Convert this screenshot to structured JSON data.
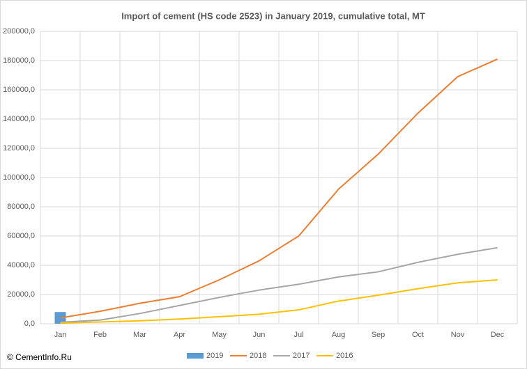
{
  "chart_data": {
    "type": "line",
    "title": "Import of cement (HS code 2523) in January 2019, cumulative total, MT",
    "source": "© CementInfo.Ru",
    "categories": [
      "Jan",
      "Feb",
      "Mar",
      "Apr",
      "May",
      "Jun",
      "Jul",
      "Aug",
      "Sep",
      "Oct",
      "Nov",
      "Dec"
    ],
    "series": [
      {
        "name": "2019",
        "type": "bar",
        "color": "#5b9bd5",
        "values": [
          8000,
          null,
          null,
          null,
          null,
          null,
          null,
          null,
          null,
          null,
          null,
          null
        ]
      },
      {
        "name": "2018",
        "color": "#ed7d31",
        "values": [
          4000,
          8500,
          14000,
          18500,
          30000,
          43000,
          60000,
          92000,
          116000,
          144000,
          169000,
          181000
        ]
      },
      {
        "name": "2017",
        "color": "#a5a5a5",
        "values": [
          1000,
          2500,
          7000,
          12500,
          18000,
          23000,
          27000,
          32000,
          35500,
          42000,
          47500,
          52000
        ]
      },
      {
        "name": "2016",
        "color": "#ffc000",
        "values": [
          500,
          1200,
          2000,
          3200,
          4800,
          6500,
          9500,
          15500,
          19500,
          24000,
          28000,
          30000
        ]
      }
    ],
    "ylim": [
      0,
      200000
    ],
    "yticks": [
      {
        "value": 0,
        "label": "0,0"
      },
      {
        "value": 20000,
        "label": "20000,0"
      },
      {
        "value": 40000,
        "label": "40000,0"
      },
      {
        "value": 60000,
        "label": "60000,0"
      },
      {
        "value": 80000,
        "label": "80000,0"
      },
      {
        "value": 100000,
        "label": "100000,0"
      },
      {
        "value": 120000,
        "label": "120000,0"
      },
      {
        "value": 140000,
        "label": "140000,0"
      },
      {
        "value": 160000,
        "label": "160000,0"
      },
      {
        "value": 180000,
        "label": "180000,0"
      },
      {
        "value": 200000,
        "label": "200000,0"
      }
    ],
    "grid": true,
    "legend": "bottom"
  }
}
